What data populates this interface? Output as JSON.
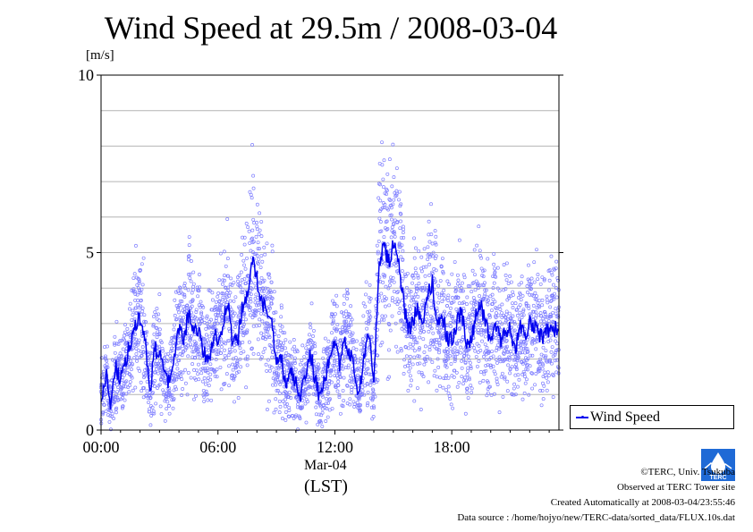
{
  "chart_data": {
    "type": "scatter",
    "title": "Wind Speed at 29.5m / 2008-03-04",
    "ylabel": "[m/s]",
    "xlabel": "Mar-04",
    "xlabel_unit": "(LST)",
    "x_unit": "hour",
    "xlim": [
      0,
      23.5
    ],
    "ylim": [
      0,
      10
    ],
    "y_ticks": [
      0,
      5,
      10
    ],
    "x_ticks": [
      {
        "value": 0,
        "label": "00:00"
      },
      {
        "value": 6,
        "label": "06:00"
      },
      {
        "value": 12,
        "label": "12:00"
      },
      {
        "value": 18,
        "label": "18:00"
      }
    ],
    "grid": true,
    "legend_position": "bottom-right outside",
    "colors": {
      "line": "#0000ee",
      "points": "#7f7fff"
    },
    "series": [
      {
        "name": "Wind Speed",
        "style": "line with scattered 10-s samples",
        "x": [
          0,
          0.25,
          0.5,
          0.75,
          1,
          1.25,
          1.5,
          1.75,
          2,
          2.25,
          2.5,
          2.75,
          3,
          3.25,
          3.5,
          3.75,
          4,
          4.25,
          4.5,
          4.75,
          5,
          5.25,
          5.5,
          5.75,
          6,
          6.25,
          6.5,
          6.75,
          7,
          7.25,
          7.5,
          7.75,
          8,
          8.25,
          8.5,
          8.75,
          9,
          9.25,
          9.5,
          9.75,
          10,
          10.25,
          10.5,
          10.75,
          11,
          11.25,
          11.5,
          11.75,
          12,
          12.25,
          12.5,
          12.75,
          13,
          13.25,
          13.5,
          13.75,
          14,
          14.25,
          14.5,
          14.75,
          15,
          15.25,
          15.5,
          15.75,
          16,
          16.25,
          16.5,
          16.75,
          17,
          17.25,
          17.5,
          17.75,
          18,
          18.25,
          18.5,
          18.75,
          19,
          19.25,
          19.5,
          19.75,
          20,
          20.25,
          20.5,
          20.75,
          21,
          21.25,
          21.5,
          21.75,
          22,
          22.25,
          22.5,
          22.75,
          23,
          23.25,
          23.5
        ],
        "y": [
          0.8,
          1.6,
          0.6,
          1.8,
          1.4,
          1.9,
          2.5,
          3.0,
          3.2,
          2.6,
          1.0,
          2.3,
          2.1,
          1.5,
          1.3,
          2.0,
          2.8,
          2.6,
          3.3,
          2.8,
          2.8,
          2.2,
          2.0,
          2.6,
          2.6,
          3.0,
          3.7,
          2.5,
          2.5,
          3.4,
          3.7,
          4.8,
          4.2,
          3.7,
          3.2,
          3.0,
          1.8,
          2.0,
          1.3,
          1.6,
          1.3,
          1.0,
          1.5,
          2.2,
          1.4,
          0.8,
          1.5,
          2.0,
          2.6,
          1.8,
          2.6,
          2.2,
          1.7,
          1.0,
          2.2,
          2.8,
          1.1,
          4.6,
          5.2,
          4.7,
          5.3,
          4.8,
          3.7,
          2.8,
          3.0,
          3.5,
          2.8,
          3.8,
          4.2,
          3.0,
          3.3,
          2.6,
          2.5,
          3.0,
          3.4,
          2.4,
          2.6,
          3.2,
          3.5,
          2.9,
          2.6,
          3.0,
          2.5,
          2.8,
          2.9,
          2.2,
          3.0,
          2.6,
          3.1,
          2.9,
          2.7,
          2.6,
          2.9,
          2.8,
          2.9
        ]
      }
    ]
  },
  "footer": {
    "copyright": "©TERC, Univ. Tsukuba",
    "observed": "Observed at TERC Tower site",
    "created": "Created Automatically at 2008-03-04/23:55:46",
    "source": "Data source : /home/hojyo/new/TERC-data/sorted_data/FLUX.10s.dat"
  },
  "logo": {
    "text": "TERC",
    "icon": "terc-logo-icon",
    "color": "#1f6ad6"
  }
}
